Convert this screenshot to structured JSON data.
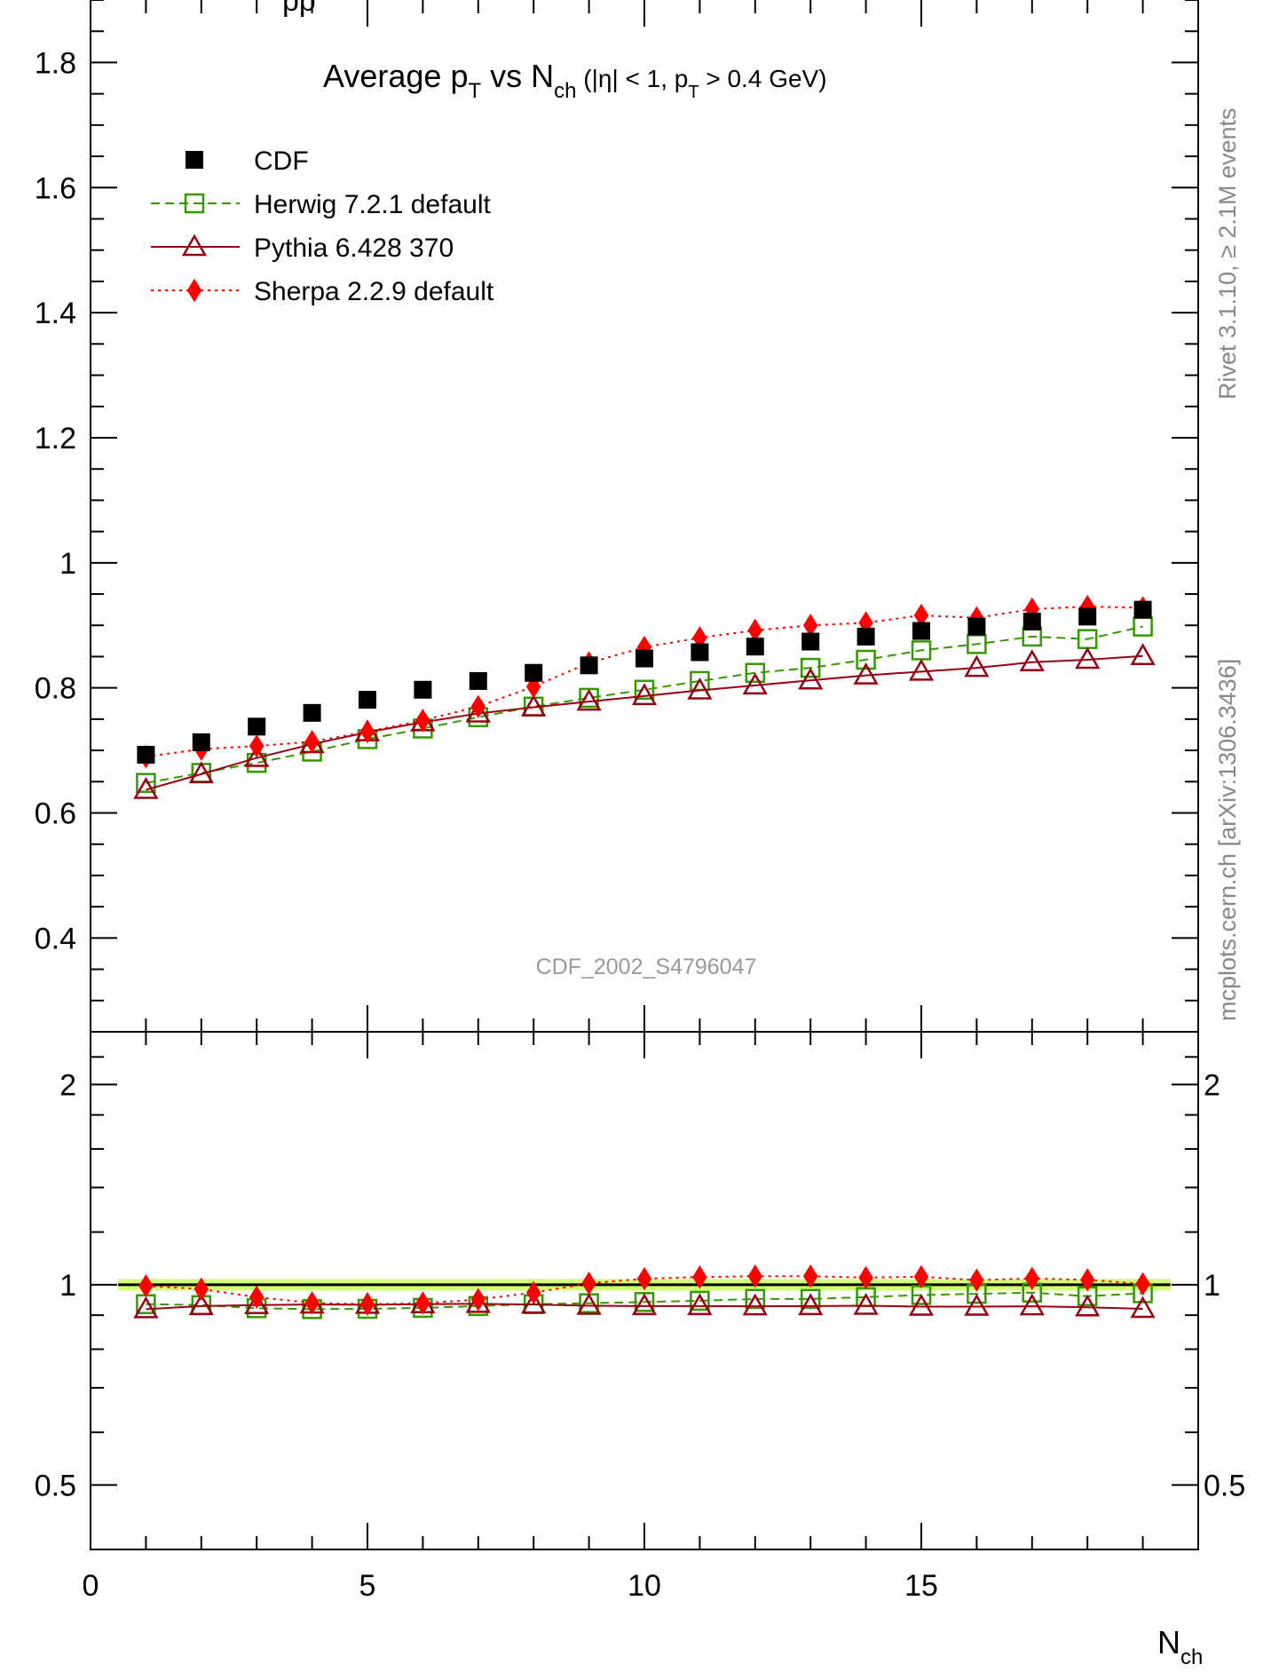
{
  "chart_data": {
    "type": "scatter",
    "title": {
      "main": "Average p",
      "sub1": "T",
      "mid": " vs N",
      "sub2": "ch",
      "cond1": " (|η| < 1, p",
      "sub3": "T",
      "cond2": " > 0.4 GeV)"
    },
    "xlabel": {
      "main": "N",
      "sub": "ch"
    },
    "ylabel": "",
    "top_left_partial": "pp",
    "side_right_top": "Rivet 3.1.10, ≥ 2.1M events",
    "side_right_bottom": "mcplots.cern.ch [arXiv:1306.3436]",
    "analysis_label": "CDF_2002_S4796047",
    "xlim": [
      0,
      20
    ],
    "main_ylim": [
      0.25,
      1.9
    ],
    "ratio_ylim": [
      0.4,
      2.4
    ],
    "x_ticks": [
      0,
      5,
      10,
      15
    ],
    "x_tick_labels": [
      "0",
      "5",
      "10",
      "15"
    ],
    "main_y_ticks": [
      0.4,
      0.6,
      0.8,
      1.0,
      1.2,
      1.4,
      1.6,
      1.8
    ],
    "main_y_tick_labels": [
      "0.4",
      "0.6",
      "0.8",
      "1",
      "1.2",
      "1.4",
      "1.6",
      "1.8"
    ],
    "ratio_y_ticks": [
      0.5,
      1,
      2
    ],
    "ratio_y_tick_labels": [
      "0.5",
      "1",
      "2"
    ],
    "x": [
      1,
      2,
      3,
      4,
      5,
      6,
      7,
      8,
      9,
      10,
      11,
      12,
      13,
      14,
      15,
      16,
      17,
      18,
      19
    ],
    "legend_position": "top-left",
    "series": [
      {
        "name": "CDF",
        "color": "#000000",
        "marker": "filled-square",
        "line": "none",
        "values": [
          0.693,
          0.713,
          0.738,
          0.76,
          0.781,
          0.797,
          0.811,
          0.824,
          0.836,
          0.847,
          0.857,
          0.866,
          0.874,
          0.882,
          0.891,
          0.898,
          0.906,
          0.914,
          0.925
        ],
        "ratio": [
          1,
          1,
          1,
          1,
          1,
          1,
          1,
          1,
          1,
          1,
          1,
          1,
          1,
          1,
          1,
          1,
          1,
          1,
          1
        ]
      },
      {
        "name": "Herwig 7.2.1 default",
        "color": "#339900",
        "marker": "open-square",
        "line": "dashed",
        "values": [
          0.648,
          0.664,
          0.68,
          0.698,
          0.718,
          0.735,
          0.753,
          0.77,
          0.784,
          0.797,
          0.811,
          0.824,
          0.832,
          0.845,
          0.86,
          0.87,
          0.882,
          0.878,
          0.898
        ],
        "ratio": [
          0.935,
          0.932,
          0.922,
          0.919,
          0.92,
          0.923,
          0.929,
          0.935,
          0.938,
          0.942,
          0.946,
          0.952,
          0.952,
          0.958,
          0.965,
          0.969,
          0.973,
          0.961,
          0.971
        ]
      },
      {
        "name": "Pythia 6.428 370",
        "color": "#990011",
        "marker": "open-triangle",
        "line": "solid",
        "values": [
          0.637,
          0.662,
          0.688,
          0.71,
          0.729,
          0.745,
          0.759,
          0.769,
          0.778,
          0.787,
          0.796,
          0.804,
          0.812,
          0.82,
          0.826,
          0.832,
          0.841,
          0.845,
          0.851
        ],
        "ratio": [
          0.919,
          0.929,
          0.932,
          0.934,
          0.933,
          0.935,
          0.936,
          0.934,
          0.93,
          0.929,
          0.929,
          0.928,
          0.929,
          0.93,
          0.927,
          0.927,
          0.928,
          0.925,
          0.92
        ]
      },
      {
        "name": "Sherpa 2.2.9 default",
        "color": "#ff0000",
        "marker": "filled-diamond",
        "line": "dotted",
        "values": [
          0.69,
          0.702,
          0.707,
          0.714,
          0.73,
          0.748,
          0.77,
          0.802,
          0.84,
          0.865,
          0.88,
          0.892,
          0.9,
          0.904,
          0.916,
          0.912,
          0.926,
          0.93,
          0.928
        ],
        "ratio": [
          0.996,
          0.985,
          0.958,
          0.939,
          0.935,
          0.938,
          0.95,
          0.973,
          1.005,
          1.021,
          1.027,
          1.03,
          1.03,
          1.025,
          1.028,
          1.016,
          1.022,
          1.017,
          1.003
        ]
      }
    ]
  }
}
